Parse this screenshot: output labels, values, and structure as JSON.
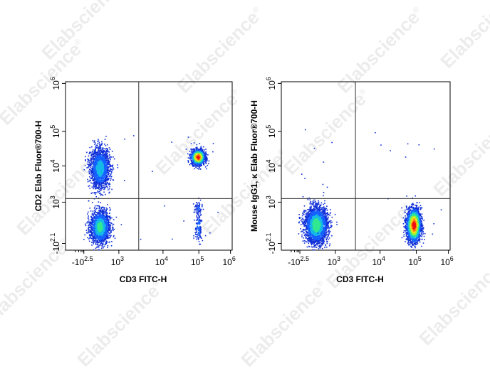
{
  "watermark": {
    "text": "Elabscience",
    "mark": "®"
  },
  "chart_data": [
    {
      "type": "scatter",
      "subtype": "flow-cytometry-density-dot-plot",
      "title": "",
      "xlabel": "CD3 FITC-H",
      "ylabel": "CD2 Elab Fluor®700-H",
      "x_scale": "biexponential",
      "y_scale": "biexponential",
      "xlim": [
        "-10^2.5",
        "10^6"
      ],
      "ylim": [
        "-10^2.1",
        "10^6"
      ],
      "x_ticks": [
        {
          "base": "-10",
          "exp": "2.5"
        },
        {
          "base": "10",
          "exp": "3"
        },
        {
          "base": "10",
          "exp": "4"
        },
        {
          "base": "10",
          "exp": "5"
        },
        {
          "base": "10",
          "exp": "6"
        }
      ],
      "y_ticks": [
        {
          "base": "-10",
          "exp": "2.1"
        },
        {
          "base": "10",
          "exp": "3"
        },
        {
          "base": "10",
          "exp": "4"
        },
        {
          "base": "10",
          "exp": "5"
        },
        {
          "base": "10",
          "exp": "6"
        }
      ],
      "gate": {
        "x_log": 3.45,
        "y_log": 3.1
      },
      "colormap": [
        "#1030d8",
        "#1560ff",
        "#16b8e8",
        "#30e890",
        "#a8f030",
        "#f8e818",
        "#ff8010",
        "#f01010"
      ],
      "populations": [
        {
          "label": "CD3- CD2+",
          "x_log": 2.45,
          "y_log": 3.95,
          "sx": 0.14,
          "sy": 0.28,
          "n": 1800,
          "peak": 0.35
        },
        {
          "label": "CD3- CD2-",
          "x_log": 2.45,
          "y_log": 2.35,
          "sx": 0.14,
          "sy": 0.22,
          "n": 1700,
          "peak": 0.45
        },
        {
          "label": "CD3+ CD2+",
          "x_log": 4.97,
          "y_log": 4.27,
          "sx": 0.1,
          "sy": 0.11,
          "n": 1500,
          "peak": 1.0
        },
        {
          "label": "CD3+ CD2- (minor)",
          "x_log": 4.98,
          "y_log": 2.35,
          "sx": 0.05,
          "sy": 0.25,
          "n": 140,
          "peak": 0.2
        },
        {
          "label": "CD3+ CD2- (minor)",
          "x_log": 4.97,
          "y_log": 2.85,
          "sx": 0.06,
          "sy": 0.1,
          "n": 60,
          "peak": 0.15
        }
      ]
    },
    {
      "type": "scatter",
      "subtype": "flow-cytometry-density-dot-plot",
      "title": "",
      "xlabel": "CD3 FITC-H",
      "ylabel": "Mouse IgG1, κ Elab Fluor®700-H",
      "x_scale": "biexponential",
      "y_scale": "biexponential",
      "xlim": [
        "-10^2.5",
        "10^6"
      ],
      "ylim": [
        "-10^2.1",
        "10^6"
      ],
      "x_ticks": [
        {
          "base": "-10",
          "exp": "2.5"
        },
        {
          "base": "10",
          "exp": "3"
        },
        {
          "base": "10",
          "exp": "4"
        },
        {
          "base": "10",
          "exp": "5"
        },
        {
          "base": "10",
          "exp": "6"
        }
      ],
      "y_ticks": [
        {
          "base": "-10",
          "exp": "2.1"
        },
        {
          "base": "10",
          "exp": "3"
        },
        {
          "base": "10",
          "exp": "4"
        },
        {
          "base": "10",
          "exp": "5"
        },
        {
          "base": "10",
          "exp": "6"
        }
      ],
      "gate": {
        "x_log": 3.45,
        "y_log": 3.1
      },
      "colormap": [
        "#1030d8",
        "#1560ff",
        "#16b8e8",
        "#30e890",
        "#a8f030",
        "#f8e818",
        "#ff8010",
        "#f01010"
      ],
      "populations": [
        {
          "label": "CD3- isotype",
          "x_log": 2.45,
          "y_log": 2.4,
          "sx": 0.16,
          "sy": 0.24,
          "n": 2600,
          "peak": 0.5
        },
        {
          "label": "CD3+ isotype",
          "x_log": 4.92,
          "y_log": 2.4,
          "sx": 0.1,
          "sy": 0.22,
          "n": 2400,
          "peak": 1.0
        }
      ]
    }
  ]
}
